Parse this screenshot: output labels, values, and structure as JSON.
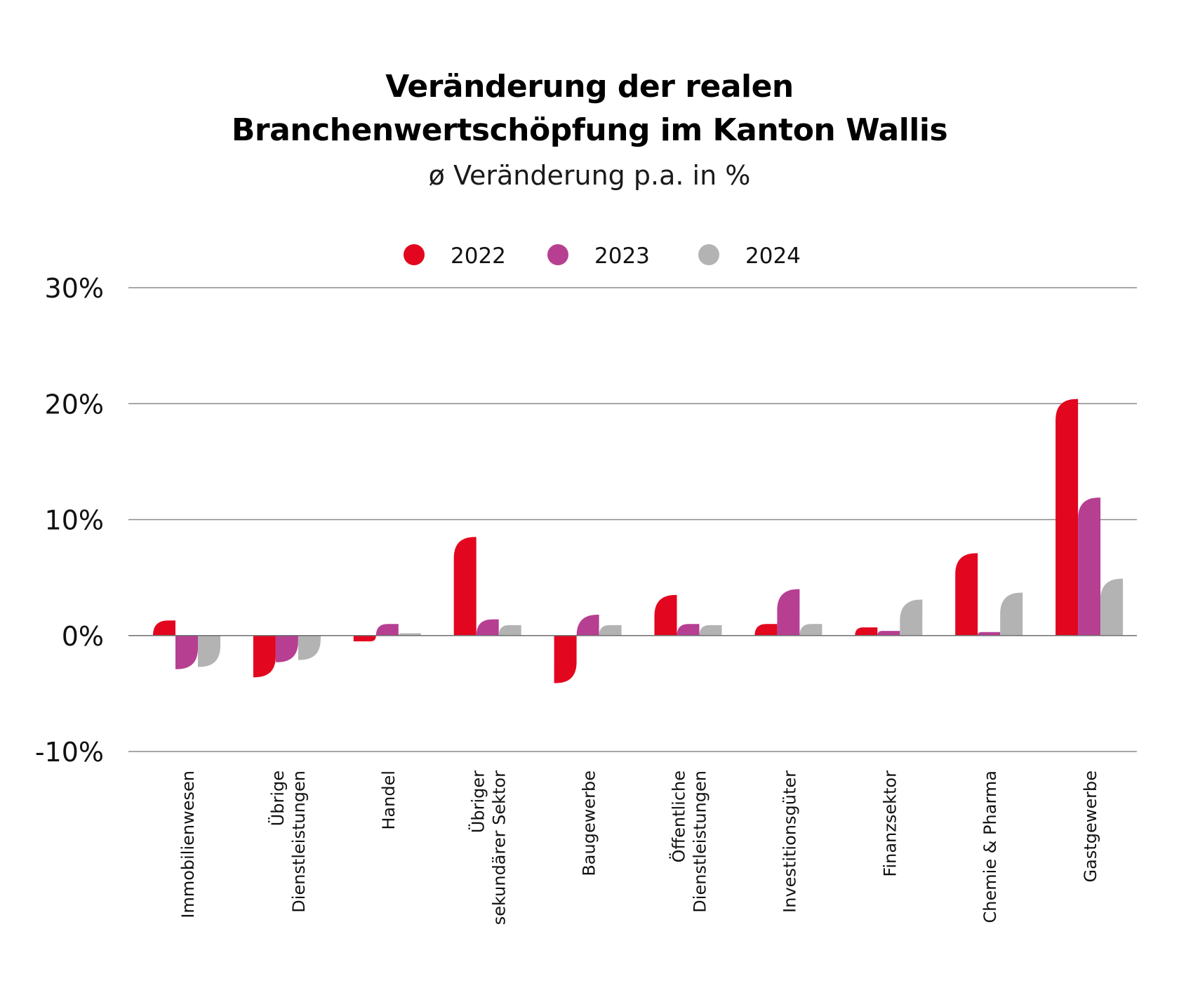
{
  "chart_data": {
    "type": "bar",
    "title_line1": "Veränderung der realen",
    "title_line2": "Branchenwertschöpfung im Kanton Wallis",
    "subtitle": "ø Veränderung p.a. in %",
    "categories": [
      [
        "Immobilienwesen"
      ],
      [
        "Übrige",
        "Dienstleistungen"
      ],
      [
        "Handel"
      ],
      [
        "Übriger",
        "sekundärer Sektor"
      ],
      [
        "Baugewerbe"
      ],
      [
        "Öffentliche",
        "Dienstleistungen"
      ],
      [
        "Investitionsgüter"
      ],
      [
        "Finanzsektor"
      ],
      [
        "Chemie & Pharma"
      ],
      [
        "Gastgewerbe"
      ]
    ],
    "series": [
      {
        "name": "2022",
        "color": "#e3061f",
        "values": [
          1.3,
          -3.6,
          -0.5,
          8.5,
          -4.1,
          3.5,
          1.0,
          0.7,
          7.1,
          20.4
        ]
      },
      {
        "name": "2023",
        "color": "#b63f92",
        "values": [
          -2.9,
          -2.3,
          1.0,
          1.4,
          1.8,
          1.0,
          4.0,
          0.4,
          0.3,
          11.9
        ]
      },
      {
        "name": "2024",
        "color": "#b3b3b3",
        "values": [
          -2.7,
          -2.1,
          0.2,
          0.9,
          0.9,
          0.9,
          1.0,
          3.1,
          3.7,
          4.9
        ]
      }
    ],
    "ylim": [
      -10,
      30
    ],
    "yticks": [
      30,
      20,
      10,
      0,
      -10
    ],
    "ytick_labels": [
      "30%",
      "20%",
      "10%",
      "0%",
      "-10%"
    ],
    "grid": true,
    "legend_position": "top-center"
  }
}
